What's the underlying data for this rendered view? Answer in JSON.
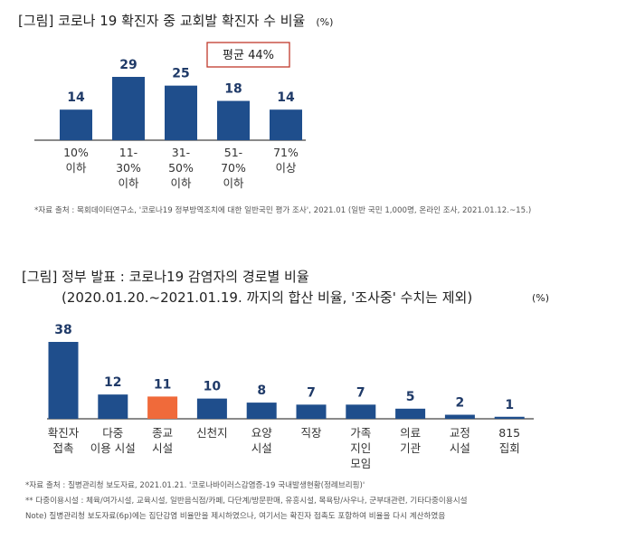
{
  "colors": {
    "bar": "#1f4e8c",
    "highlight": "#f06a3a",
    "axis": "#444444",
    "avg_border": "#c0392b"
  },
  "chart_data": [
    {
      "type": "bar",
      "title": "[그림] 코로나 19 확진자 중 교회발 확진자 수 비율",
      "unit": "(%)",
      "categories": [
        [
          "10%",
          "이하"
        ],
        [
          "11-",
          "30%",
          "이하"
        ],
        [
          "31-",
          "50%",
          "이하"
        ],
        [
          "51-",
          "70%",
          "이하"
        ],
        [
          "71%",
          "이상"
        ]
      ],
      "values": [
        14,
        29,
        25,
        18,
        14
      ],
      "annotation": "평균 44%",
      "ylim": [
        0,
        29
      ],
      "note": "*자료 출처 : 목회데이터연구소, '코로나19 정부방역조치에 대한 일반국민 평가 조사', 2021.01 (일반 국민 1,000명, 온라인 조사, 2021.01.12.~15.)"
    },
    {
      "type": "bar",
      "title_line1": "[그림] 정부 발표 : 코로나19 감염자의 경로별 비율",
      "title_line2": "(2020.01.20.~2021.01.19. 까지의 합산 비율, '조사중' 수치는 제외)",
      "unit": "(%)",
      "categories": [
        [
          "확진자",
          "접촉"
        ],
        [
          "다중",
          "이용 시설"
        ],
        [
          "종교",
          "시설"
        ],
        [
          "신천지"
        ],
        [
          "요양",
          "시설"
        ],
        [
          "직장"
        ],
        [
          "가족",
          "지인",
          "모임"
        ],
        [
          "의료",
          "기관"
        ],
        [
          "교정",
          "시설"
        ],
        [
          "815",
          "집회"
        ]
      ],
      "values": [
        38,
        12,
        11,
        10,
        8,
        7,
        7,
        5,
        2,
        1
      ],
      "highlight_index": 2,
      "ylim": [
        0,
        38
      ],
      "notes": [
        "*자료 출처 : 질병관리청 보도자료, 2021.01.21. '코로나바이러스감염증-19 국내발생현황(정례브리핑)'",
        "** 다중이용시설 : 체육/여가시설, 교육시설, 일반음식점/카페, 다단계/방문판매, 유흥시설, 목욕탕/사우나, 군부대관련, 기타다중이용시설",
        "Note) 질병관리청 보도자료(6p)에는 집단감염 비율만을 제시하였으나, 여기서는 확진자 접촉도 포함하여 비율을 다시 계산하였음"
      ]
    }
  ]
}
